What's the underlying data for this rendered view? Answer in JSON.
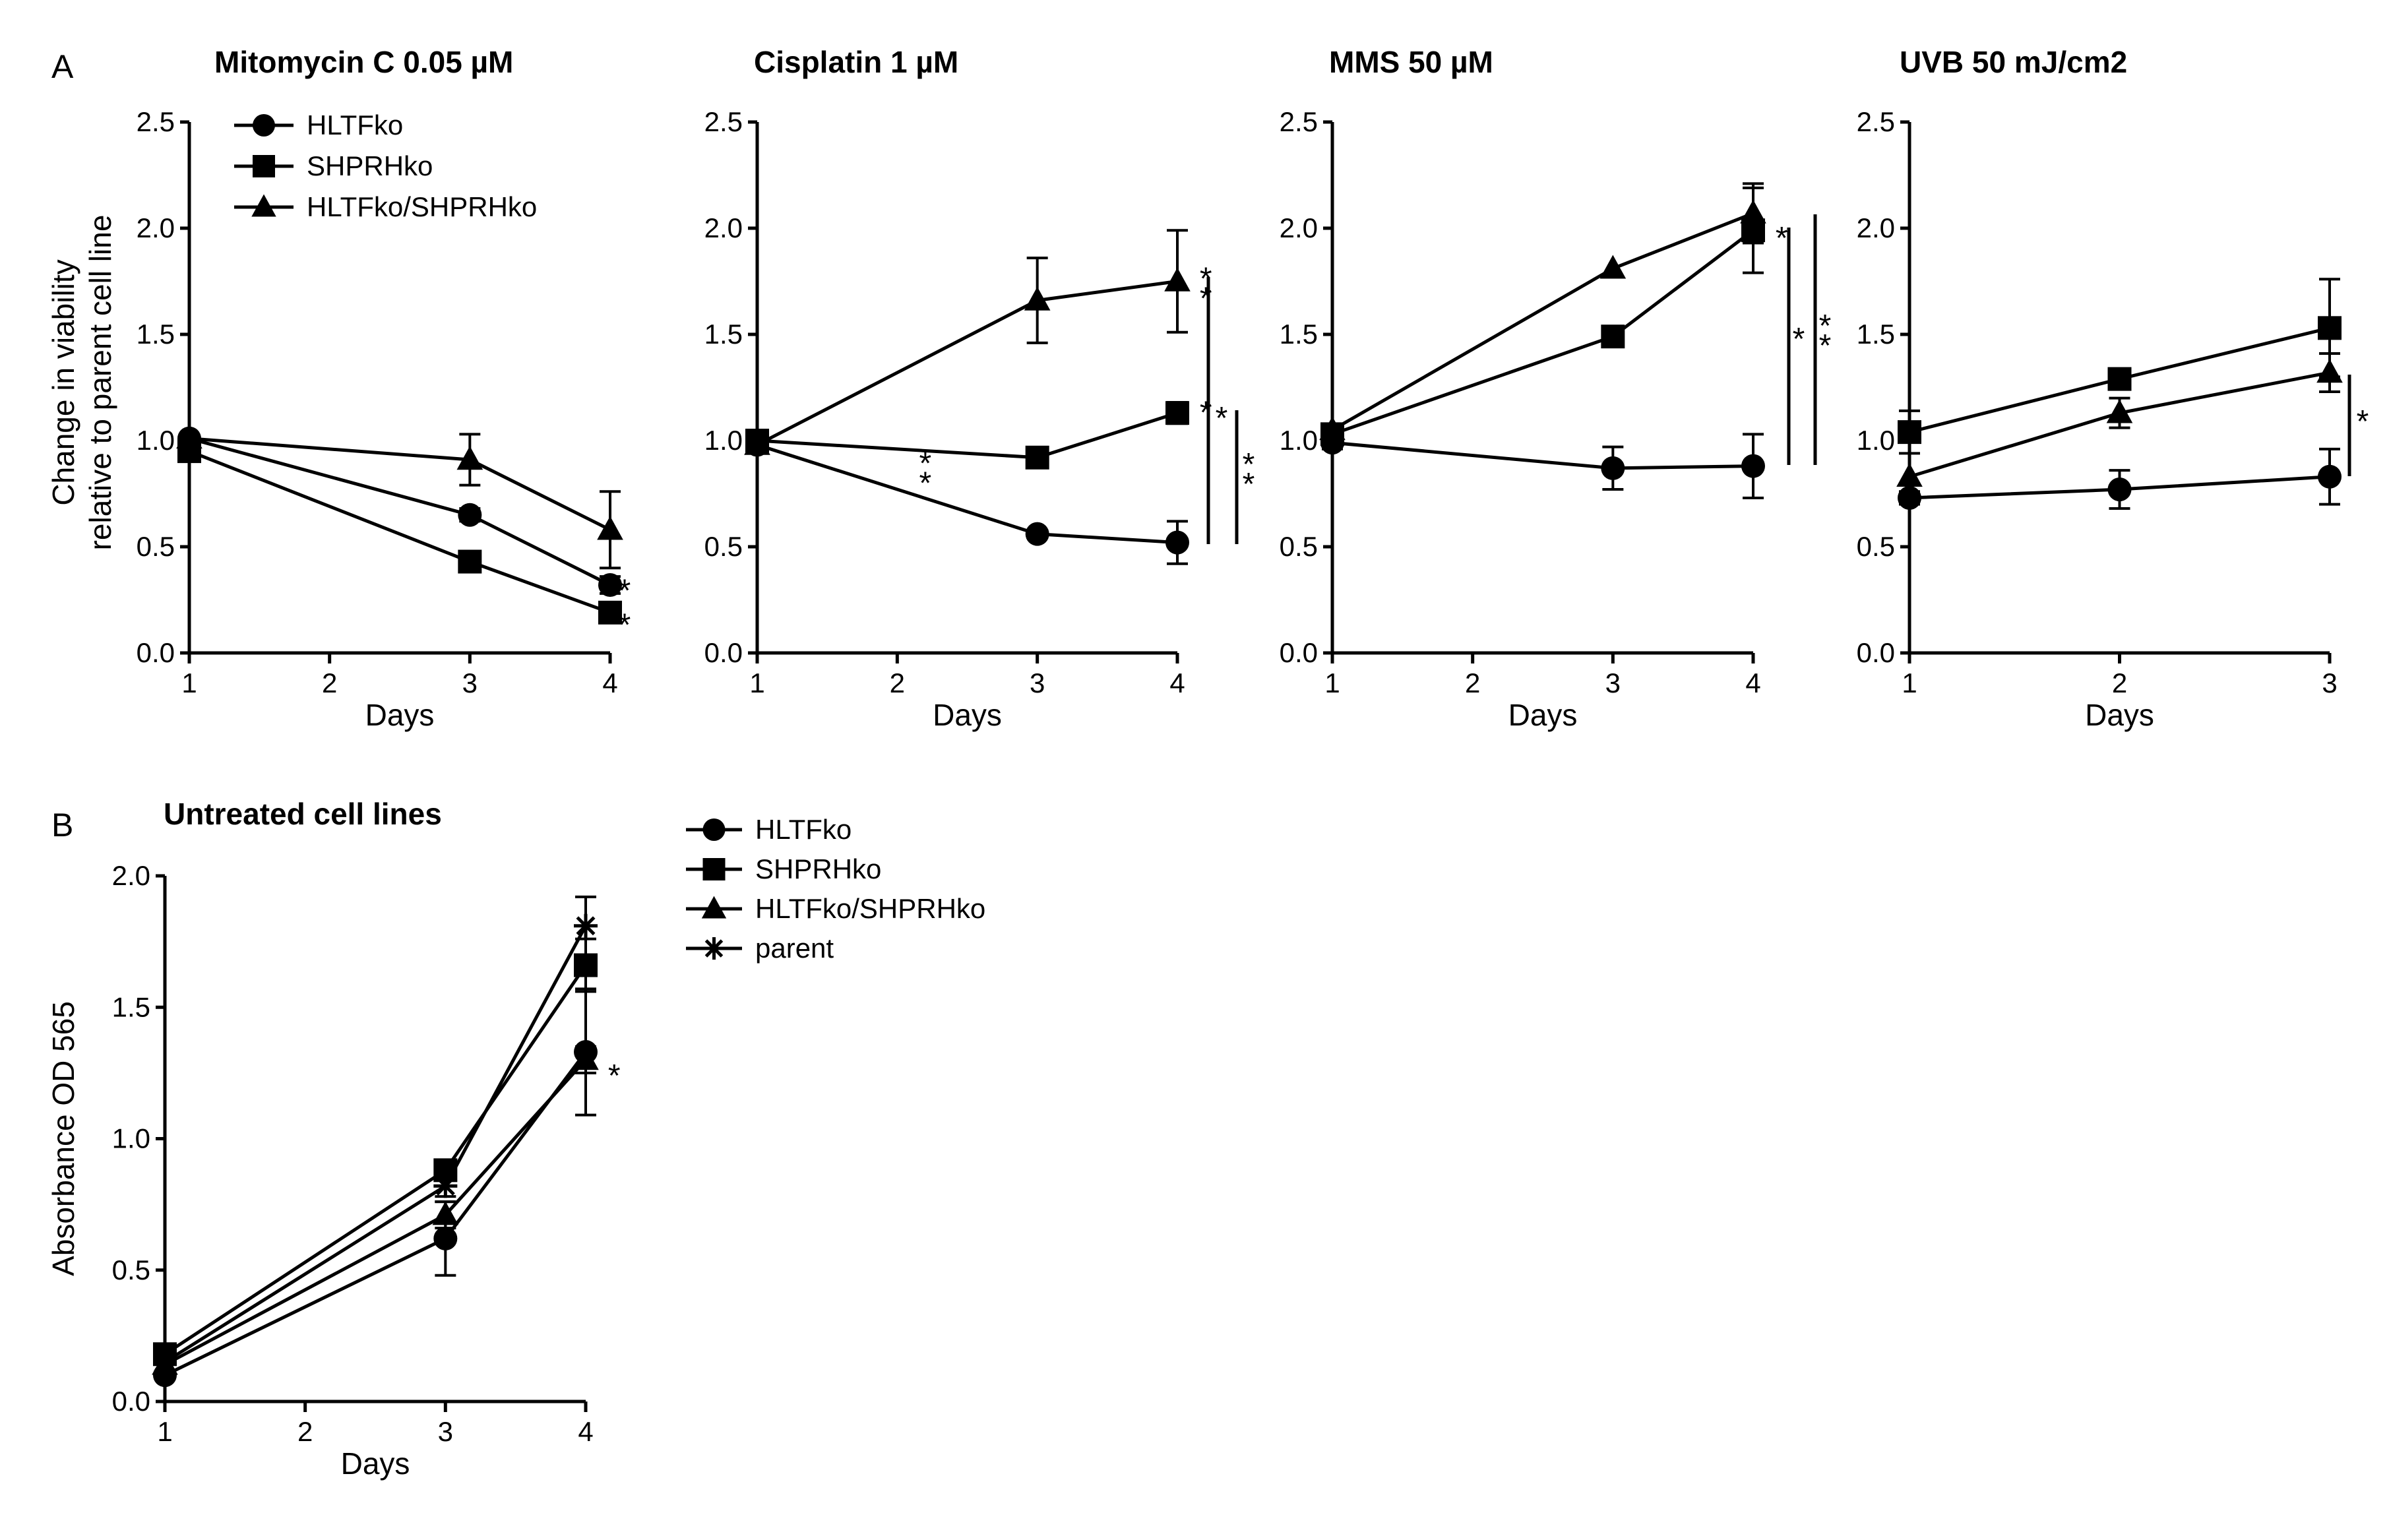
{
  "panel_labels": {
    "a": "A",
    "b": "B"
  },
  "shared_ylabel_a": [
    "Change in viability",
    "relative to parent cell line"
  ],
  "legend_a": [
    "HLTFko",
    "SHPRHko",
    "HLTFko/SHPRHko"
  ],
  "legend_b": [
    "HLTFko",
    "SHPRHko",
    "HLTFko/SHPRHko",
    "parent"
  ],
  "chart_data": [
    {
      "type": "line",
      "title": "Mitomycin C 0.05 µM",
      "xlabel": "Days",
      "ylabel": "Change in viability relative to parent cell line",
      "x_ticks": [
        "1",
        "2",
        "3",
        "4"
      ],
      "x_range": [
        1,
        4
      ],
      "y_ticks": [
        "0.0",
        "0.5",
        "1.0",
        "1.5",
        "2.0",
        "2.5"
      ],
      "y_range": [
        0,
        2.5
      ],
      "series": [
        {
          "name": "HLTFko",
          "marker": "circle",
          "points": [
            {
              "x": 1,
              "y": 1.01,
              "err": 0.02
            },
            {
              "x": 3,
              "y": 0.65,
              "err": 0.03
            },
            {
              "x": 4,
              "y": 0.32,
              "err": 0.04
            }
          ]
        },
        {
          "name": "SHPRHko",
          "marker": "square",
          "points": [
            {
              "x": 1,
              "y": 0.95,
              "err": 0.02
            },
            {
              "x": 3,
              "y": 0.43,
              "err": 0.03
            },
            {
              "x": 4,
              "y": 0.19,
              "err": 0.03
            }
          ]
        },
        {
          "name": "HLTFko/SHPRHko",
          "marker": "triangle",
          "points": [
            {
              "x": 1,
              "y": 1.01,
              "err": 0.02
            },
            {
              "x": 3,
              "y": 0.91,
              "err": 0.12
            },
            {
              "x": 4,
              "y": 0.58,
              "err": 0.18
            }
          ]
        }
      ],
      "significance": [
        {
          "label": "*",
          "x": 4,
          "y": 0.33
        },
        {
          "label": "*",
          "x": 4,
          "y": 0.17
        }
      ]
    },
    {
      "type": "line",
      "title": "Cisplatin 1 µM",
      "xlabel": "Days",
      "x_ticks": [
        "1",
        "2",
        "3",
        "4"
      ],
      "x_range": [
        1,
        4
      ],
      "y_ticks": [
        "0.0",
        "0.5",
        "1.0",
        "1.5",
        "2.0",
        "2.5"
      ],
      "y_range": [
        0,
        2.5
      ],
      "series": [
        {
          "name": "HLTFko",
          "marker": "circle",
          "points": [
            {
              "x": 1,
              "y": 0.98,
              "err": 0.03
            },
            {
              "x": 3,
              "y": 0.56,
              "err": 0.02
            },
            {
              "x": 4,
              "y": 0.52,
              "err": 0.1
            }
          ]
        },
        {
          "name": "SHPRHko",
          "marker": "square",
          "points": [
            {
              "x": 1,
              "y": 1.0,
              "err": 0.02
            },
            {
              "x": 3,
              "y": 0.92,
              "err": 0.03
            },
            {
              "x": 4,
              "y": 1.13,
              "err": 0.05
            }
          ]
        },
        {
          "name": "HLTFko/SHPRHko",
          "marker": "triangle",
          "points": [
            {
              "x": 1,
              "y": 0.98,
              "err": 0.02
            },
            {
              "x": 3,
              "y": 1.66,
              "err": 0.2
            },
            {
              "x": 4,
              "y": 1.75,
              "err": 0.24
            }
          ]
        }
      ],
      "significance": [
        {
          "label": "**",
          "x": 2.2,
          "y": 0.88
        },
        {
          "label": "**",
          "x": 4.1,
          "y": 1.75
        },
        {
          "label": "*",
          "x": 4.1,
          "y": 1.17
        }
      ]
    },
    {
      "type": "line",
      "title": "MMS 50 µM",
      "xlabel": "Days",
      "x_ticks": [
        "1",
        "2",
        "3",
        "4"
      ],
      "x_range": [
        1,
        4
      ],
      "y_ticks": [
        "0.0",
        "0.5",
        "1.0",
        "1.5",
        "2.0",
        "2.5"
      ],
      "y_range": [
        0,
        2.5
      ],
      "series": [
        {
          "name": "HLTFko",
          "marker": "circle",
          "points": [
            {
              "x": 1,
              "y": 0.99,
              "err": 0.03
            },
            {
              "x": 3,
              "y": 0.87,
              "err": 0.1
            },
            {
              "x": 4,
              "y": 0.88,
              "err": 0.15
            }
          ]
        },
        {
          "name": "SHPRHko",
          "marker": "square",
          "points": [
            {
              "x": 1,
              "y": 1.03,
              "err": 0.02
            },
            {
              "x": 3,
              "y": 1.49,
              "err": 0.03
            },
            {
              "x": 4,
              "y": 1.99,
              "err": 0.2
            }
          ]
        },
        {
          "name": "HLTFko/SHPRHko",
          "marker": "triangle",
          "points": [
            {
              "x": 1,
              "y": 1.05,
              "err": 0.02
            },
            {
              "x": 3,
              "y": 1.81,
              "err": 0.02
            },
            {
              "x": 4,
              "y": 2.07,
              "err": 0.14
            }
          ]
        }
      ],
      "significance": [
        {
          "label": "*",
          "x": 4.1,
          "y": 1.99
        }
      ]
    },
    {
      "type": "line",
      "title": "UVB 50 mJ/cm2",
      "xlabel": "Days",
      "x_ticks": [
        "1",
        "2",
        "3"
      ],
      "x_range": [
        1,
        3
      ],
      "y_ticks": [
        "0.0",
        "0.5",
        "1.0",
        "1.5",
        "2.0",
        "2.5"
      ],
      "y_range": [
        0,
        2.5
      ],
      "series": [
        {
          "name": "HLTFko",
          "marker": "circle",
          "points": [
            {
              "x": 1,
              "y": 0.73,
              "err": 0.03
            },
            {
              "x": 2,
              "y": 0.77,
              "err": 0.09
            },
            {
              "x": 3,
              "y": 0.83,
              "err": 0.13
            }
          ]
        },
        {
          "name": "SHPRHko",
          "marker": "square",
          "points": [
            {
              "x": 1,
              "y": 1.04,
              "err": 0.1
            },
            {
              "x": 2,
              "y": 1.29,
              "err": 0.04
            },
            {
              "x": 3,
              "y": 1.53,
              "err": 0.23
            }
          ]
        },
        {
          "name": "HLTFko/SHPRHko",
          "marker": "triangle",
          "points": [
            {
              "x": 1,
              "y": 0.83,
              "err": 0.02
            },
            {
              "x": 2,
              "y": 1.13,
              "err": 0.07
            },
            {
              "x": 3,
              "y": 1.32,
              "err": 0.09
            }
          ]
        }
      ],
      "significance": []
    },
    {
      "type": "line",
      "title": "Untreated cell lines",
      "xlabel": "Days",
      "ylabel": "Absorbance OD 565",
      "x_ticks": [
        "1",
        "2",
        "3",
        "4"
      ],
      "x_range": [
        1,
        4
      ],
      "y_ticks": [
        "0.0",
        "0.5",
        "1.0",
        "1.5",
        "2.0"
      ],
      "y_range": [
        0,
        2
      ],
      "series": [
        {
          "name": "HLTFko",
          "marker": "circle",
          "points": [
            {
              "x": 1,
              "y": 0.1,
              "err": 0.02
            },
            {
              "x": 3,
              "y": 0.62,
              "err": 0.14
            },
            {
              "x": 4,
              "y": 1.33,
              "err": 0.24
            }
          ]
        },
        {
          "name": "SHPRHko",
          "marker": "square",
          "points": [
            {
              "x": 1,
              "y": 0.18,
              "err": 0.02
            },
            {
              "x": 3,
              "y": 0.88,
              "err": 0.03
            },
            {
              "x": 4,
              "y": 1.66,
              "err": 0.1
            }
          ]
        },
        {
          "name": "HLTFko/SHPRHko",
          "marker": "triangle",
          "points": [
            {
              "x": 1,
              "y": 0.14,
              "err": 0.02
            },
            {
              "x": 3,
              "y": 0.71,
              "err": 0.05
            },
            {
              "x": 4,
              "y": 1.3,
              "err": 0.05
            }
          ]
        },
        {
          "name": "parent",
          "marker": "asterisk",
          "points": [
            {
              "x": 1,
              "y": 0.15,
              "err": 0.02
            },
            {
              "x": 3,
              "y": 0.82,
              "err": 0.04
            },
            {
              "x": 4,
              "y": 1.81,
              "err": 0.11
            }
          ]
        }
      ],
      "significance": [
        {
          "label": "*",
          "x": 4.1,
          "y": 1.27
        }
      ]
    }
  ],
  "brackets": [
    {
      "chart": 1,
      "labels": [
        "*",
        "**"
      ]
    },
    {
      "chart": 2,
      "labels": [
        "*",
        "**"
      ]
    },
    {
      "chart": 3,
      "labels": [
        "*"
      ]
    }
  ]
}
